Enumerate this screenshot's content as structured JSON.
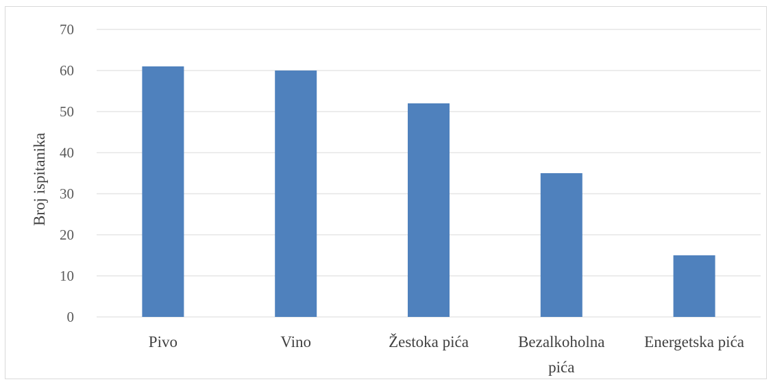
{
  "chart_data": {
    "type": "bar",
    "categories": [
      [
        "Pivo"
      ],
      [
        "Vino"
      ],
      [
        "Žestoka pića"
      ],
      [
        "Bezalkoholna",
        "pića"
      ],
      [
        "Energetska pića"
      ]
    ],
    "values": [
      61,
      60,
      52,
      35,
      15
    ],
    "title": "",
    "xlabel": "",
    "ylabel": "Broj ispitanika",
    "ylim": [
      0,
      70
    ],
    "yticks": [
      0,
      10,
      20,
      30,
      40,
      50,
      60,
      70
    ],
    "grid": true,
    "legend": "none",
    "bar_color": "#4f81bd",
    "grid_color": "#d9d9d9"
  }
}
